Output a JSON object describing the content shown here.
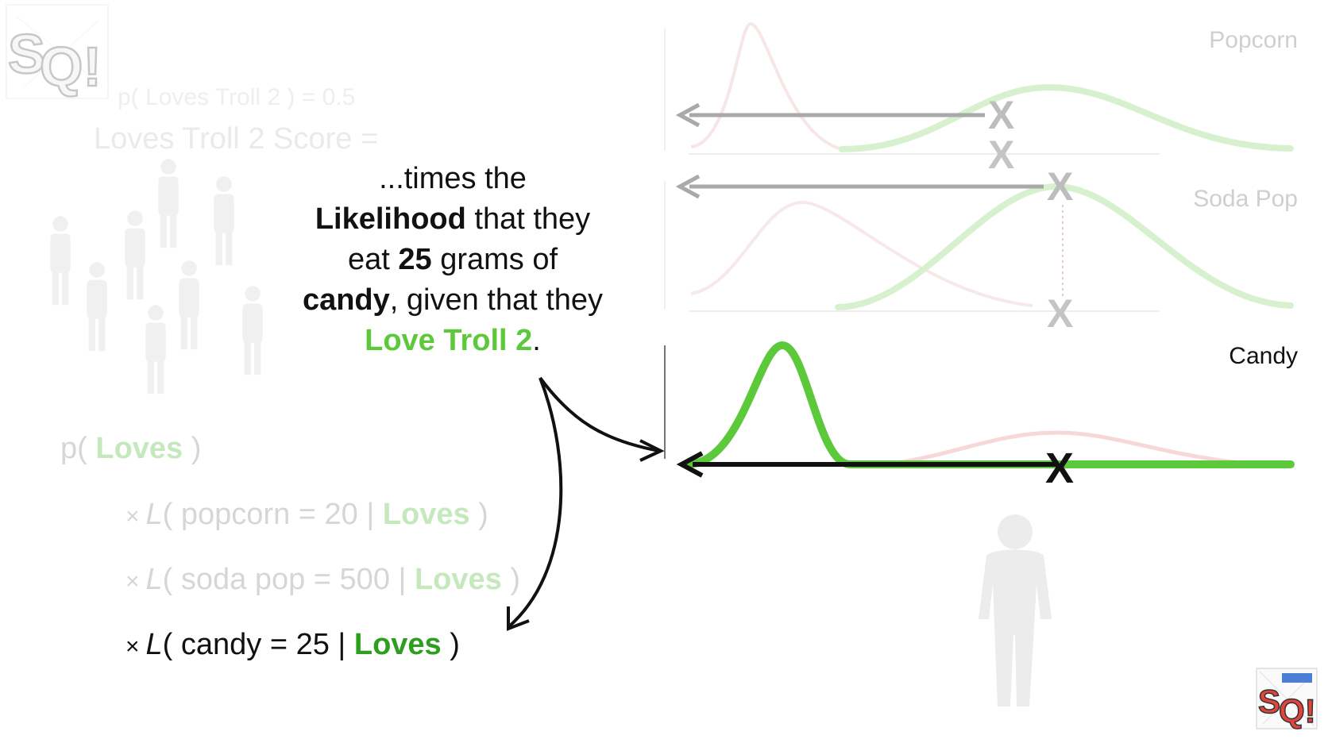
{
  "background": {
    "prior_text": "p( Loves Troll 2 ) = 0.5",
    "score_text": "Loves Troll 2 Score ="
  },
  "callout": {
    "line1": "...times the",
    "line2_bold": "Likelihood",
    "line2_rest": " that they",
    "line3_pre": "eat ",
    "line3_bold": "25",
    "line3_post": " grams of",
    "line4_bold": "candy",
    "line4_rest": ", given that they",
    "line5_green": "Love Troll 2",
    "line5_end": "."
  },
  "formula": {
    "prior": {
      "pre": "p( ",
      "green": "Loves",
      "post": " )"
    },
    "terms": [
      {
        "times": "×",
        "L": "L",
        "body": "( popcorn = 20 | ",
        "green": "Loves",
        "post": " )",
        "active": false
      },
      {
        "times": "×",
        "L": "L",
        "body": "( soda pop = 500 | ",
        "green": "Loves",
        "post": " )",
        "active": false
      },
      {
        "times": "×",
        "L": "L",
        "body": "( candy = 25 | ",
        "green": "Loves",
        "post": " )",
        "active": true
      }
    ]
  },
  "chart_data": [
    {
      "type": "line",
      "title": "Popcorn",
      "marker": "X",
      "observed_x": 20,
      "highlighted": false
    },
    {
      "type": "line",
      "title": "Soda Pop",
      "marker": "X",
      "observed_x": 500,
      "highlighted": false
    },
    {
      "type": "line",
      "title": "Candy",
      "marker": "X",
      "observed_x": 25,
      "highlighted": true
    }
  ],
  "colors": {
    "loves_green": "#5cc93b",
    "faded_green": "#d4f0cb",
    "faded_red": "#f7dcdc",
    "arrow_gray": "#a9a9a9",
    "ink": "#111111"
  },
  "icons": [
    "statquest-logo-icon",
    "person-silhouette-icon",
    "statquest-badge-icon"
  ]
}
